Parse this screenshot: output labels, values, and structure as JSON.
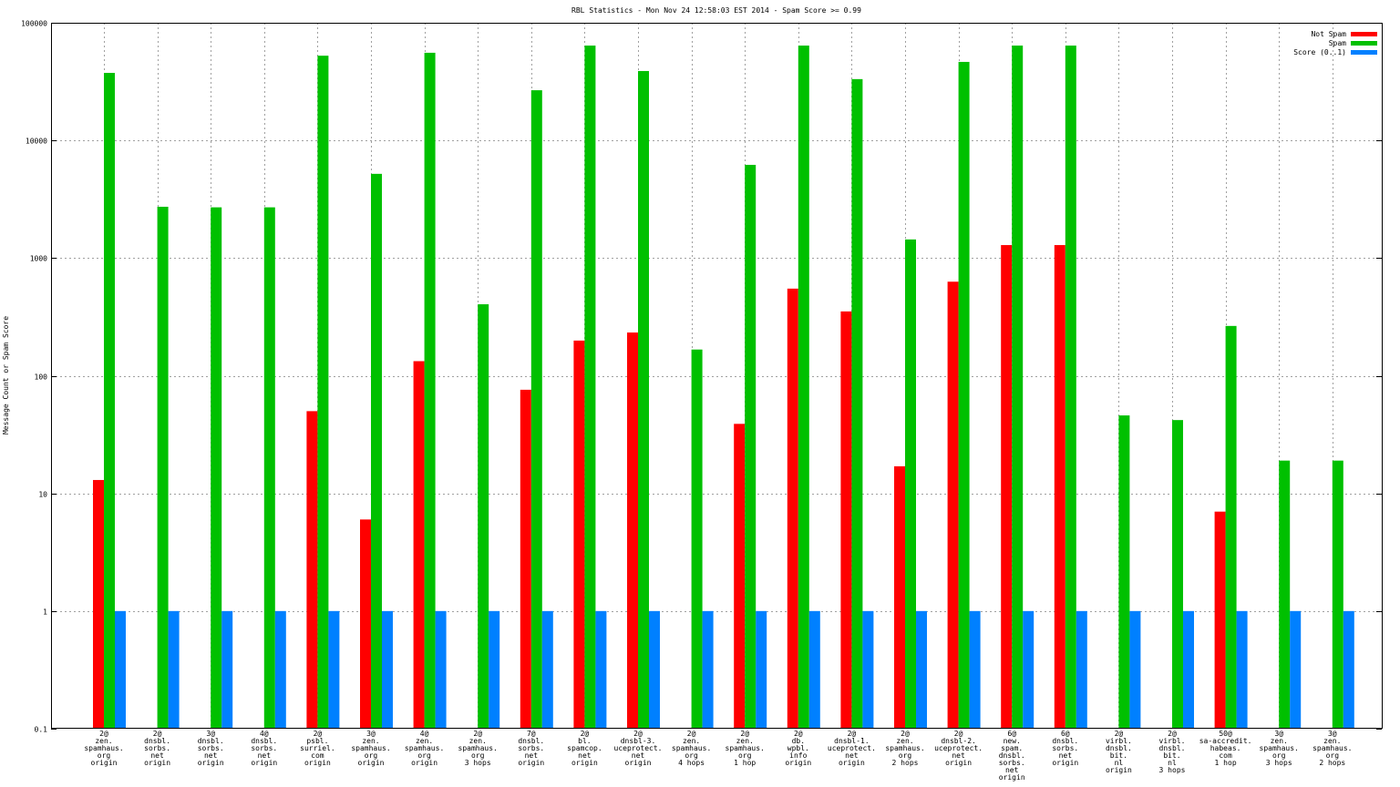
{
  "chart_data": {
    "type": "bar",
    "title": "RBL Statistics - Mon Nov 24 12:58:03 EST 2014 - Spam Score >= 0.99",
    "xlabel": "",
    "ylabel": "Message Count or Spam Score",
    "yscale": "log",
    "ylim": [
      0.1,
      100000
    ],
    "yticks": [
      "100000",
      "10000",
      "1000",
      "100",
      "10",
      "1",
      "0.1"
    ],
    "ytick_values": [
      100000,
      10000,
      1000,
      100,
      10,
      1,
      0.1
    ],
    "grid": true,
    "legend_position": "top-right",
    "categories": [
      [
        "2@",
        "zen.",
        "spamhaus.",
        "org",
        "origin"
      ],
      [
        "2@",
        "dnsbl.",
        "sorbs.",
        "net",
        "origin"
      ],
      [
        "3@",
        "dnsbl.",
        "sorbs.",
        "net",
        "origin"
      ],
      [
        "4@",
        "dnsbl.",
        "sorbs.",
        "net",
        "origin"
      ],
      [
        "2@",
        "psbl.",
        "surriel.",
        "com",
        "origin"
      ],
      [
        "3@",
        "zen.",
        "spamhaus.",
        "org",
        "origin"
      ],
      [
        "4@",
        "zen.",
        "spamhaus.",
        "org",
        "origin"
      ],
      [
        "2@",
        "zen.",
        "spamhaus.",
        "org",
        "3 hops"
      ],
      [
        "7@",
        "dnsbl.",
        "sorbs.",
        "net",
        "origin"
      ],
      [
        "2@",
        "bl.",
        "spamcop.",
        "net",
        "origin"
      ],
      [
        "2@",
        "dnsbl-3.",
        "uceprotect.",
        "net",
        "origin"
      ],
      [
        "2@",
        "zen.",
        "spamhaus.",
        "org",
        "4 hops"
      ],
      [
        "2@",
        "zen.",
        "spamhaus.",
        "org",
        "1 hop"
      ],
      [
        "2@",
        "db.",
        "wpbl.",
        "info",
        "origin"
      ],
      [
        "2@",
        "dnsbl-1.",
        "uceprotect.",
        "net",
        "origin"
      ],
      [
        "2@",
        "zen.",
        "spamhaus.",
        "org",
        "2 hops"
      ],
      [
        "2@",
        "dnsbl-2.",
        "uceprotect.",
        "net",
        "origin"
      ],
      [
        "6@",
        "new.",
        "spam.",
        "dnsbl.",
        "sorbs.",
        "net",
        "origin"
      ],
      [
        "6@",
        "dnsbl.",
        "sorbs.",
        "net",
        "origin"
      ],
      [
        "2@",
        "virbl.",
        "dnsbl.",
        "bit.",
        "nl",
        "origin"
      ],
      [
        "2@",
        "virbl.",
        "dnsbl.",
        "bit.",
        "nl",
        "3 hops"
      ],
      [
        "50@",
        "sa-accredit.",
        "habeas.",
        "com",
        "1 hop"
      ],
      [
        "3@",
        "zen.",
        "spamhaus.",
        "org",
        "3 hops"
      ],
      [
        "3@",
        "zen.",
        "spamhaus.",
        "org",
        "2 hops"
      ]
    ],
    "series": [
      {
        "name": "Not Spam",
        "color": "#ff0000",
        "values": [
          13,
          null,
          null,
          null,
          50,
          6,
          133,
          null,
          76,
          199,
          233,
          null,
          39,
          550,
          352,
          17,
          630,
          1290,
          1290,
          null,
          null,
          7,
          null,
          null
        ]
      },
      {
        "name": "Spam",
        "color": "#00c000",
        "values": [
          37500,
          2730,
          2700,
          2700,
          52500,
          5200,
          55600,
          405,
          26700,
          64000,
          38900,
          167,
          6200,
          64000,
          33200,
          1440,
          46500,
          64000,
          64000,
          46,
          42,
          265,
          19,
          19
        ]
      },
      {
        "name": "Score (0..1)",
        "color": "#0080ff",
        "values": [
          1,
          1,
          1,
          1,
          1,
          1,
          1,
          1,
          1,
          1,
          1,
          1,
          1,
          1,
          1,
          1,
          1,
          1,
          1,
          1,
          1,
          1,
          1,
          1
        ]
      }
    ]
  }
}
